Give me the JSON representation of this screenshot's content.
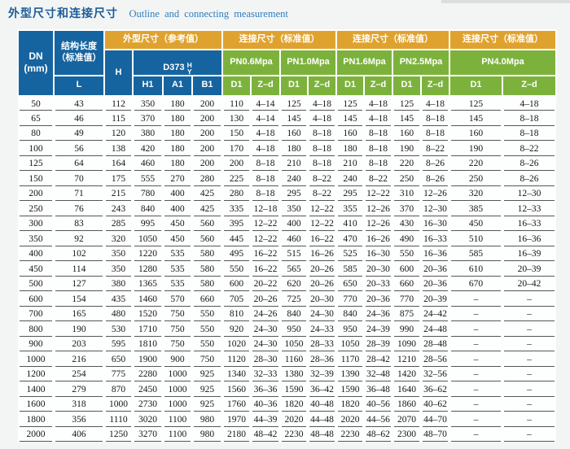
{
  "page": {
    "title_zh": "外型尺寸和连接尺寸",
    "title_en": "Outline and connecting measurement"
  },
  "colors": {
    "header_blue": "#16649f",
    "header_orange": "#e0a22f",
    "header_green": "#7cb23c",
    "title_blue_dark": "#1a5c96",
    "title_blue_light": "#2f7dbd",
    "row_rule_gray": "#565656"
  },
  "table": {
    "header": {
      "dn": "DN\n(mm)",
      "structural_length": "结构长度\n（标准值）",
      "l": "L",
      "outline_group": "外型尺寸（参考值）",
      "connect_group": "连接尺寸（标准值）",
      "h": "H",
      "d373_prefix": "D373",
      "d373_top": "H",
      "d373_bottom": "Y",
      "h1": "H1",
      "a1": "A1",
      "b1": "B1",
      "pn_labels": [
        "PN0.6Mpa",
        "PN1.0Mpa",
        "PN1.6Mpa",
        "PN2.5Mpa",
        "PN4.0Mpa"
      ],
      "d1": "D1",
      "zd": "Z–d"
    },
    "columns": [
      "DN(mm)",
      "L",
      "H",
      "H1",
      "A1",
      "B1",
      "PN0.6 D1",
      "PN0.6 Z–d",
      "PN1.0 D1",
      "PN1.0 Z–d",
      "PN1.6 D1",
      "PN1.6 Z–d",
      "PN2.5 D1",
      "PN2.5 Z–d",
      "PN4.0 D1",
      "PN4.0 Z–d"
    ],
    "rows": [
      [
        "50",
        "43",
        "112",
        "350",
        "180",
        "200",
        "110",
        "4–14",
        "125",
        "4–18",
        "125",
        "4–18",
        "125",
        "4–18",
        "125",
        "4–18"
      ],
      [
        "65",
        "46",
        "115",
        "370",
        "180",
        "200",
        "130",
        "4–14",
        "145",
        "4–18",
        "145",
        "4–18",
        "145",
        "8–18",
        "145",
        "8–18"
      ],
      [
        "80",
        "49",
        "120",
        "380",
        "180",
        "200",
        "150",
        "4–18",
        "160",
        "8–18",
        "160",
        "8–18",
        "160",
        "8–18",
        "160",
        "8–18"
      ],
      [
        "100",
        "56",
        "138",
        "420",
        "180",
        "200",
        "170",
        "4–18",
        "180",
        "8–18",
        "180",
        "8–18",
        "190",
        "8–22",
        "190",
        "8–22"
      ],
      [
        "125",
        "64",
        "164",
        "460",
        "180",
        "200",
        "200",
        "8–18",
        "210",
        "8–18",
        "210",
        "8–18",
        "220",
        "8–26",
        "220",
        "8–26"
      ],
      [
        "150",
        "70",
        "175",
        "555",
        "270",
        "280",
        "225",
        "8–18",
        "240",
        "8–22",
        "240",
        "8–22",
        "250",
        "8–26",
        "250",
        "8–26"
      ],
      [
        "200",
        "71",
        "215",
        "780",
        "400",
        "425",
        "280",
        "8–18",
        "295",
        "8–22",
        "295",
        "12–22",
        "310",
        "12–26",
        "320",
        "12–30"
      ],
      [
        "250",
        "76",
        "243",
        "840",
        "400",
        "425",
        "335",
        "12–18",
        "350",
        "12–22",
        "355",
        "12–26",
        "370",
        "12–30",
        "385",
        "12–33"
      ],
      [
        "300",
        "83",
        "285",
        "995",
        "450",
        "560",
        "395",
        "12–22",
        "400",
        "12–22",
        "410",
        "12–26",
        "430",
        "16–30",
        "450",
        "16–33"
      ],
      [
        "350",
        "92",
        "320",
        "1050",
        "450",
        "560",
        "445",
        "12–22",
        "460",
        "16–22",
        "470",
        "16–26",
        "490",
        "16–33",
        "510",
        "16–36"
      ],
      [
        "400",
        "102",
        "350",
        "1220",
        "535",
        "580",
        "495",
        "16–22",
        "515",
        "16–26",
        "525",
        "16–30",
        "550",
        "16–36",
        "585",
        "16–39"
      ],
      [
        "450",
        "114",
        "350",
        "1280",
        "535",
        "580",
        "550",
        "16–22",
        "565",
        "20–26",
        "585",
        "20–30",
        "600",
        "20–36",
        "610",
        "20–39"
      ],
      [
        "500",
        "127",
        "380",
        "1365",
        "535",
        "580",
        "600",
        "20–22",
        "620",
        "20–26",
        "650",
        "20–33",
        "660",
        "20–36",
        "670",
        "20–42"
      ],
      [
        "600",
        "154",
        "435",
        "1460",
        "570",
        "660",
        "705",
        "20–26",
        "725",
        "20–30",
        "770",
        "20–36",
        "770",
        "20–39",
        "–",
        "–"
      ],
      [
        "700",
        "165",
        "480",
        "1520",
        "750",
        "550",
        "810",
        "24–26",
        "840",
        "24–30",
        "840",
        "24–36",
        "875",
        "24–42",
        "–",
        "–"
      ],
      [
        "800",
        "190",
        "530",
        "1710",
        "750",
        "550",
        "920",
        "24–30",
        "950",
        "24–33",
        "950",
        "24–39",
        "990",
        "24–48",
        "–",
        "–"
      ],
      [
        "900",
        "203",
        "595",
        "1810",
        "750",
        "550",
        "1020",
        "24–30",
        "1050",
        "28–33",
        "1050",
        "28–39",
        "1090",
        "28–48",
        "–",
        "–"
      ],
      [
        "1000",
        "216",
        "650",
        "1900",
        "900",
        "750",
        "1120",
        "28–30",
        "1160",
        "28–36",
        "1170",
        "28–42",
        "1210",
        "28–56",
        "–",
        "–"
      ],
      [
        "1200",
        "254",
        "775",
        "2280",
        "1000",
        "925",
        "1340",
        "32–33",
        "1380",
        "32–39",
        "1390",
        "32–48",
        "1420",
        "32–56",
        "–",
        "–"
      ],
      [
        "1400",
        "279",
        "870",
        "2450",
        "1000",
        "925",
        "1560",
        "36–36",
        "1590",
        "36–42",
        "1590",
        "36–48",
        "1640",
        "36–62",
        "–",
        "–"
      ],
      [
        "1600",
        "318",
        "1000",
        "2730",
        "1000",
        "925",
        "1760",
        "40–36",
        "1820",
        "40–48",
        "1820",
        "40–56",
        "1860",
        "40–62",
        "–",
        "–"
      ],
      [
        "1800",
        "356",
        "1110",
        "3020",
        "1100",
        "980",
        "1970",
        "44–39",
        "2020",
        "44–48",
        "2020",
        "44–56",
        "2070",
        "44–70",
        "–",
        "–"
      ],
      [
        "2000",
        "406",
        "1250",
        "3270",
        "1100",
        "980",
        "2180",
        "48–42",
        "2230",
        "48–48",
        "2230",
        "48–62",
        "2300",
        "48–70",
        "–",
        "–"
      ]
    ]
  }
}
